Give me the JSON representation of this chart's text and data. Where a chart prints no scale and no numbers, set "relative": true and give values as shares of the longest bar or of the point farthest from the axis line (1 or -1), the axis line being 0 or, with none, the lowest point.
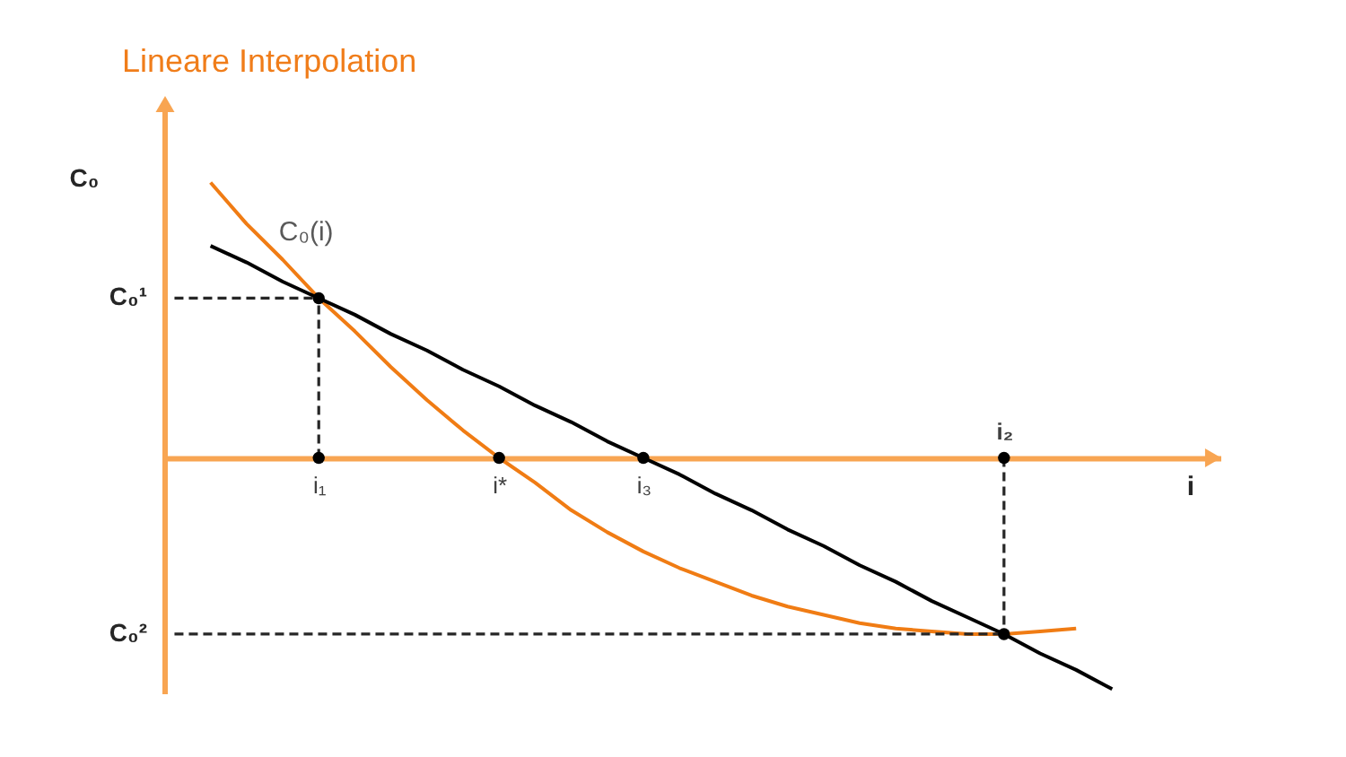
{
  "chart_data": {
    "type": "line",
    "title": "Lineare Interpolation",
    "xlabel": "i",
    "ylabel": "C₀",
    "relative": true,
    "categories": [
      null,
      null,
      null,
      null,
      "i₁",
      null,
      null,
      null,
      null,
      "i*",
      null,
      null,
      null,
      "i₃",
      null,
      null,
      null,
      null,
      null,
      null,
      null,
      null,
      null,
      "i₂",
      null,
      null,
      null,
      null,
      null,
      null
    ],
    "series": [
      {
        "name": "C₀(i)",
        "color": "#f07c14",
        "values": [
          null,
          1.0,
          0.85,
          0.72,
          0.58,
          0.46,
          0.33,
          0.21,
          0.1,
          0,
          -0.09,
          -0.19,
          -0.27,
          -0.34,
          -0.4,
          -0.45,
          -0.5,
          -0.54,
          -0.57,
          -0.6,
          -0.62,
          -0.63,
          -0.64,
          -0.64,
          -0.63,
          -0.62,
          null,
          null,
          null,
          null
        ]
      },
      {
        "color": "#000000",
        "values": [
          null,
          0.77,
          0.71,
          0.64,
          0.58,
          0.52,
          0.45,
          0.39,
          0.32,
          0.26,
          0.19,
          0.13,
          0.06,
          0,
          -0.06,
          -0.13,
          -0.19,
          -0.26,
          -0.32,
          -0.39,
          -0.45,
          -0.52,
          -0.58,
          -0.64,
          -0.71,
          -0.77,
          -0.84,
          null,
          null,
          null
        ]
      },
      {
        "color": "#262626",
        "line_style": "dashed",
        "x": [
          "i₁",
          "i₁"
        ],
        "values": [
          0,
          0.58
        ]
      },
      {
        "color": "#262626",
        "line_style": "dashed",
        "x": [
          "i₂",
          "i₂"
        ],
        "values": [
          0,
          -0.64
        ]
      },
      {
        "type": "scatter",
        "color": "#000000",
        "marker": "circle",
        "x": [
          "i₁",
          "i₁",
          "i*",
          "i₃",
          "i₂",
          "i₂"
        ],
        "values": [
          0,
          0.58,
          0,
          0,
          0,
          -0.64
        ]
      }
    ],
    "ref_lines": [
      {
        "axis": "y",
        "value": 0.58,
        "label": "C₀¹",
        "color": "#262626",
        "line_style": "dashed"
      },
      {
        "axis": "y",
        "value": -0.64,
        "label": "C₀²",
        "color": "#262626",
        "line_style": "dashed"
      }
    ]
  }
}
